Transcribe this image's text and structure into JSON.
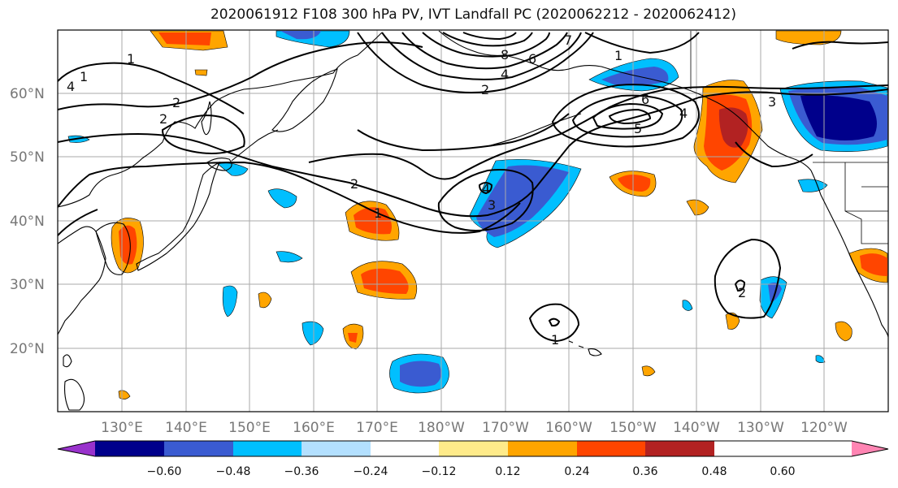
{
  "title": "2020061912 F108 300 hPa PV, IVT Landfall PC (2020062212 - 2020062412)",
  "lat_labels": [
    "60°N",
    "50°N",
    "40°N",
    "30°N",
    "20°N"
  ],
  "lon_labels": [
    "130°E",
    "140°E",
    "150°E",
    "160°E",
    "170°E",
    "180°W",
    "170°W",
    "160°W",
    "150°W",
    "140°W",
    "130°W",
    "120°W"
  ],
  "colorbar": {
    "colors": [
      "#9932CC",
      "#00008B",
      "#3A5BD1",
      "#00BFFF",
      "#B3E0FF",
      "#FFFFFF",
      "#FFEB8A",
      "#FFA500",
      "#FF4500",
      "#B22222",
      "#FF85B3"
    ],
    "ticks": [
      "−0.60",
      "−0.48",
      "−0.36",
      "−0.24",
      "−0.12",
      "0.12",
      "0.24",
      "0.36",
      "0.48",
      "0.60"
    ]
  },
  "contour_labels": [
    "1",
    "3",
    "4",
    "2",
    "2",
    "1",
    "2",
    "8",
    "6",
    "4",
    "7",
    "2",
    "1",
    "6",
    "5",
    "4",
    "3",
    "2",
    "4",
    "3",
    "1",
    "1",
    "2",
    "2",
    "1"
  ]
}
